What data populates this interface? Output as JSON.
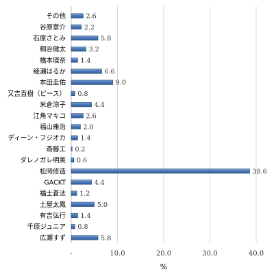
{
  "chart_data": {
    "type": "bar",
    "orientation": "horizontal",
    "categories": [
      "その他",
      "谷原章介",
      "石原さとみ",
      "桐谷健太",
      "橋本環奈",
      "綾瀬はるか",
      "本田圭佑",
      "又吉直樹（ピース）",
      "米倉涼子",
      "江角マキコ",
      "福山雅治",
      "ディーン・フジオカ",
      "斎藤工",
      "ダレノガレ明美",
      "松岡修造",
      "GACKT",
      "福士蒼汰",
      "土屋太鳳",
      "有吉弘行",
      "千原ジュニア",
      "広瀬すず"
    ],
    "values": [
      2.6,
      2.2,
      5.8,
      3.2,
      1.4,
      6.6,
      9.0,
      0.8,
      4.4,
      2.6,
      2.0,
      1.4,
      0.2,
      0.6,
      38.6,
      4.4,
      1.2,
      5.0,
      1.4,
      0.8,
      5.8
    ],
    "value_labels": [
      "2.6",
      "2.2",
      "5.8",
      "3.2",
      "1.4",
      "6.6",
      "9.0",
      "0.8",
      "4.4",
      "2.6",
      "2.0",
      "1.4",
      "0.2",
      "0.6",
      "38.6",
      "4.4",
      "1.2",
      "5.0",
      "1.4",
      "0.8",
      "5.8"
    ],
    "xlim": [
      0,
      40
    ],
    "xticks": [
      0,
      10,
      20,
      30,
      40
    ],
    "xtick_labels": [
      "-",
      "10.0",
      "20.0",
      "30.0",
      "40.0"
    ],
    "xlabel": "%",
    "grid": "vertical",
    "bar_color": "#4a78b8",
    "bar_edge_color": "#2e4f7e"
  }
}
